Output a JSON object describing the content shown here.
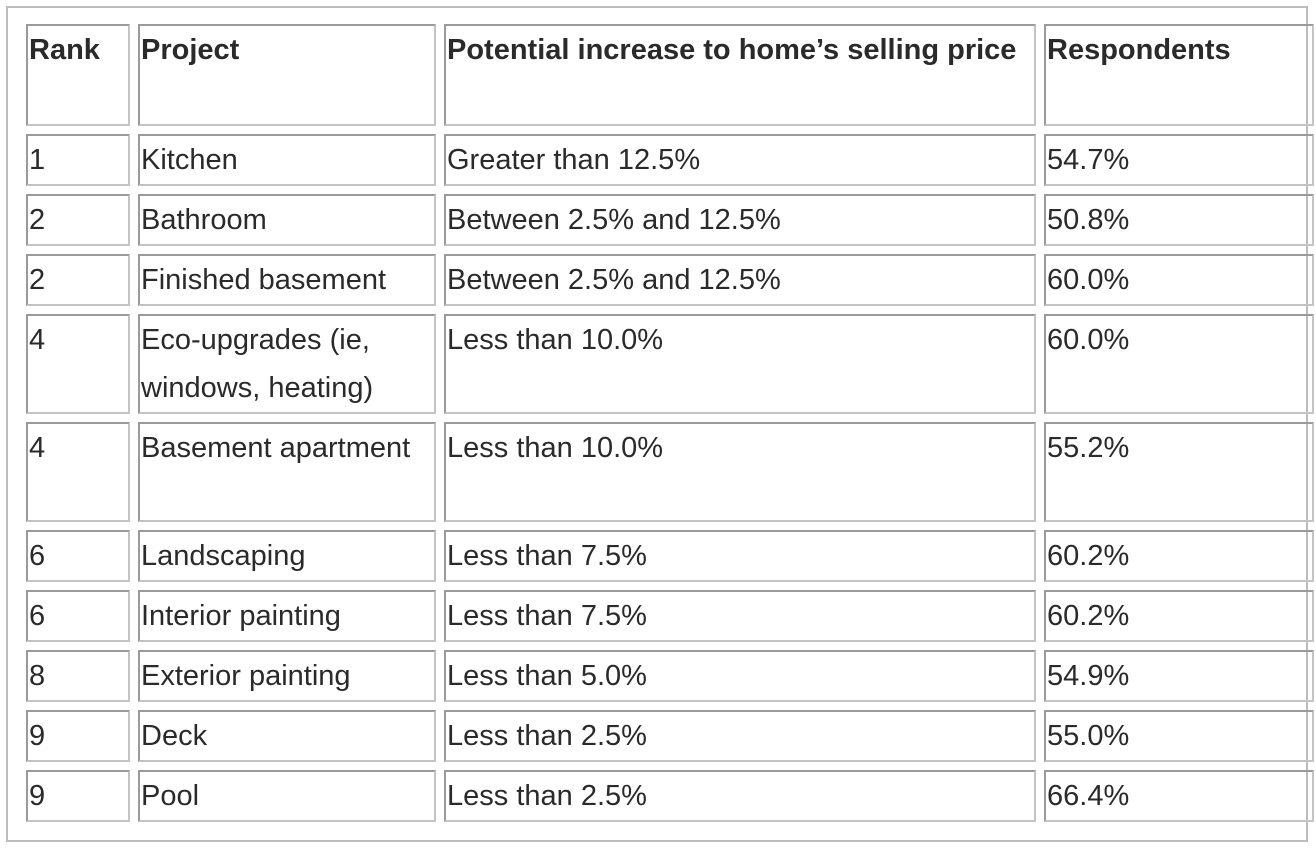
{
  "table": {
    "headers": {
      "rank": "Rank",
      "project": "Project",
      "increase": "Potential increase to home’s selling price",
      "respondents": "Respondents"
    },
    "rows": [
      {
        "rank": "1",
        "project": "Kitchen",
        "increase": "Greater than 12.5%",
        "respondents": "54.7%"
      },
      {
        "rank": "2",
        "project": "Bathroom",
        "increase": "Between 2.5% and 12.5%",
        "respondents": "50.8%"
      },
      {
        "rank": "2",
        "project": "Finished basement",
        "increase": "Between 2.5% and 12.5%",
        "respondents": "60.0%"
      },
      {
        "rank": "4",
        "project": "Eco-upgrades (ie, windows, heating)",
        "increase": "Less than 10.0%",
        "respondents": "60.0%"
      },
      {
        "rank": "4",
        "project": "Basement apartment",
        "increase": "Less than 10.0%",
        "respondents": "55.2%"
      },
      {
        "rank": "6",
        "project": "Landscaping",
        "increase": "Less than 7.5%",
        "respondents": "60.2%"
      },
      {
        "rank": "6",
        "project": "Interior painting",
        "increase": "Less than 7.5%",
        "respondents": "60.2%"
      },
      {
        "rank": "8",
        "project": "Exterior painting",
        "increase": "Less than 5.0%",
        "respondents": "54.9%"
      },
      {
        "rank": "9",
        "project": "Deck",
        "increase": "Less than 2.5%",
        "respondents": "55.0%"
      },
      {
        "rank": "9",
        "project": "Pool",
        "increase": "Less than 2.5%",
        "respondents": "66.4%"
      }
    ]
  }
}
